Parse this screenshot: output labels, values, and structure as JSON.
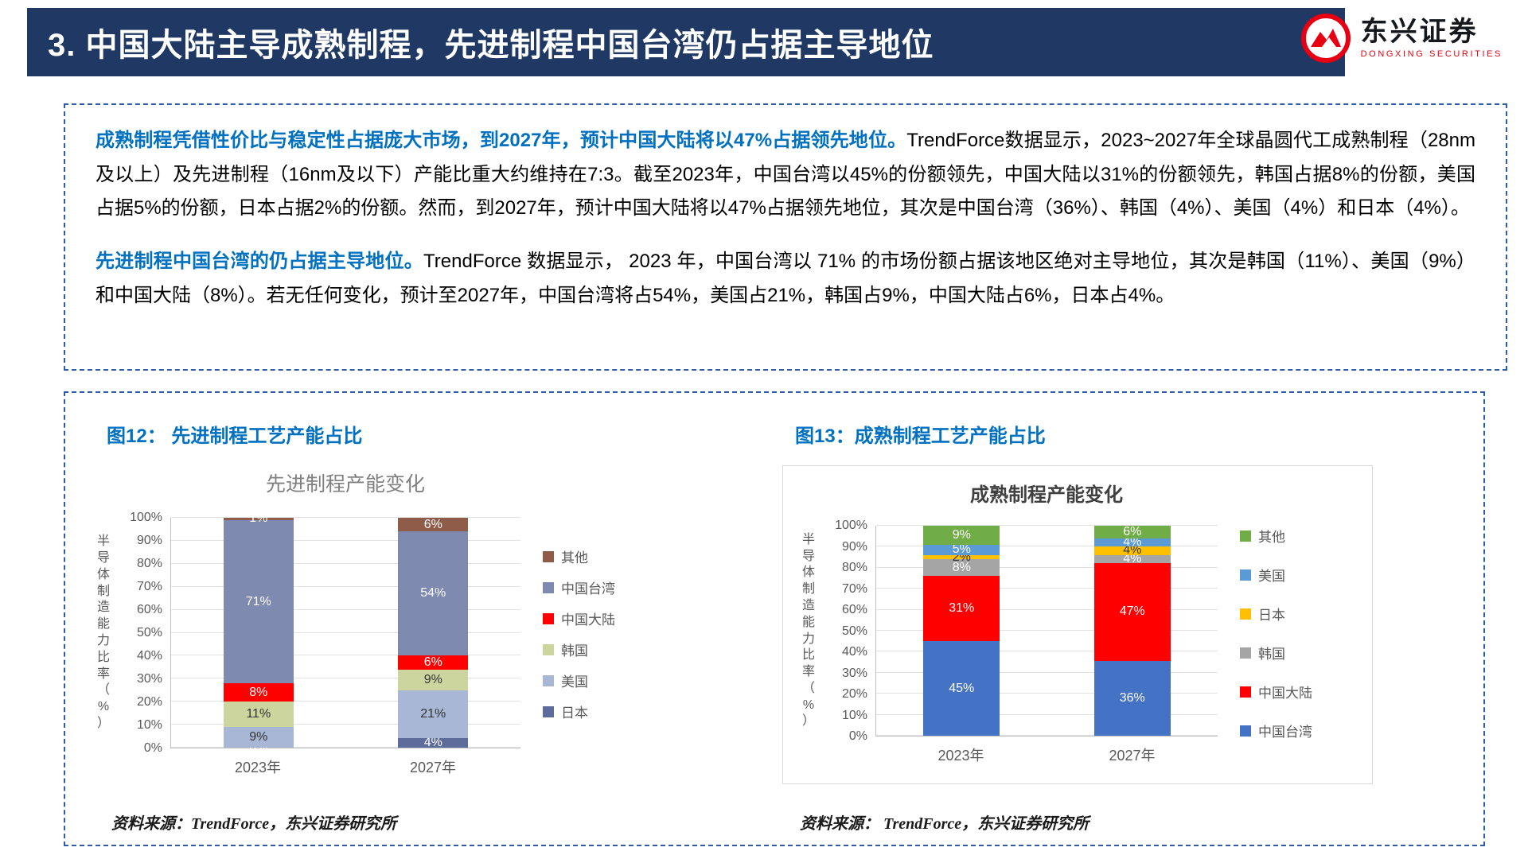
{
  "header": {
    "title": "3. 中国大陆主导成熟制程，先进制程中国台湾仍占据主导地位",
    "logo": {
      "name": "东兴证券",
      "subtitle": "DONGXING SECURITIES"
    }
  },
  "summary": {
    "p1_lead": "成熟制程凭借性价比与稳定性占据庞大市场，到2027年，预计中国大陆将以47%占据领先地位。",
    "p1_body": "TrendForce数据显示，2023~2027年全球晶圆代工成熟制程（28nm及以上）及先进制程（16nm及以下）产能比重大约维持在7:3。截至2023年，中国台湾以45%的份额领先，中国大陆以31%的份额领先，韩国占据8%的份额，美国占据5%的份额，日本占据2%的份额。然而，到2027年，预计中国大陆将以47%占据领先地位，其次是中国台湾（36%）、韩国（4%）、美国（4%）和日本（4%）。",
    "p2_lead": "先进制程中国台湾的仍占据主导地位。",
    "p2_body": "TrendForce 数据显示， 2023 年，中国台湾以 71% 的市场份额占据该地区绝对主导地位，其次是韩国（11%）、美国（9%）和中国大陆（8%）。若无任何变化，预计至2027年，中国台湾将占54%，美国占21%，韩国占9%，中国大陆占6%，日本占4%。"
  },
  "figures": [
    {
      "caption": "图12： 先进制程工艺产能占比",
      "source": "资料来源：TrendForce，东兴证券研究所"
    },
    {
      "caption": "图13：成熟制程工艺产能占比",
      "source": "资料来源： TrendForce，东兴证券研究所"
    }
  ],
  "chart_data": [
    {
      "type": "bar",
      "stacked": true,
      "title": "先进制程产能变化",
      "categories": [
        "2023年",
        "2027年"
      ],
      "series": [
        {
          "name": "日本",
          "color": "#5E6C9B",
          "values": [
            0,
            4
          ]
        },
        {
          "name": "美国",
          "color": "#A8B7D6",
          "values": [
            9,
            21
          ]
        },
        {
          "name": "韩国",
          "color": "#CDD59E",
          "values": [
            11,
            9
          ]
        },
        {
          "name": "中国大陆",
          "color": "#FF0000",
          "values": [
            8,
            6
          ]
        },
        {
          "name": "中国台湾",
          "color": "#7E8AB0",
          "values": [
            71,
            54
          ]
        },
        {
          "name": "其他",
          "color": "#8E5C48",
          "values": [
            1,
            6
          ]
        }
      ],
      "ylabel": "半导体制造能力比率（%）",
      "xlabel": "",
      "ylim": [
        0,
        100
      ],
      "ytick_step": 10,
      "grid": true,
      "legend_position": "right"
    },
    {
      "type": "bar",
      "stacked": true,
      "title": "成熟制程产能变化",
      "categories": [
        "2023年",
        "2027年"
      ],
      "series": [
        {
          "name": "中国台湾",
          "color": "#4472C4",
          "values": [
            45,
            36
          ]
        },
        {
          "name": "中国大陆",
          "color": "#FF0000",
          "values": [
            31,
            47
          ]
        },
        {
          "name": "韩国",
          "color": "#A5A5A5",
          "values": [
            8,
            4
          ]
        },
        {
          "name": "日本",
          "color": "#FFC000",
          "values": [
            2,
            4
          ]
        },
        {
          "name": "美国",
          "color": "#5B9BD5",
          "values": [
            5,
            4
          ]
        },
        {
          "name": "其他",
          "color": "#70AD47",
          "values": [
            9,
            6
          ]
        }
      ],
      "ylabel": "半导体制造能力比率（%）",
      "xlabel": "",
      "ylim": [
        0,
        100
      ],
      "ytick_step": 10,
      "grid": true,
      "legend_position": "right"
    }
  ]
}
